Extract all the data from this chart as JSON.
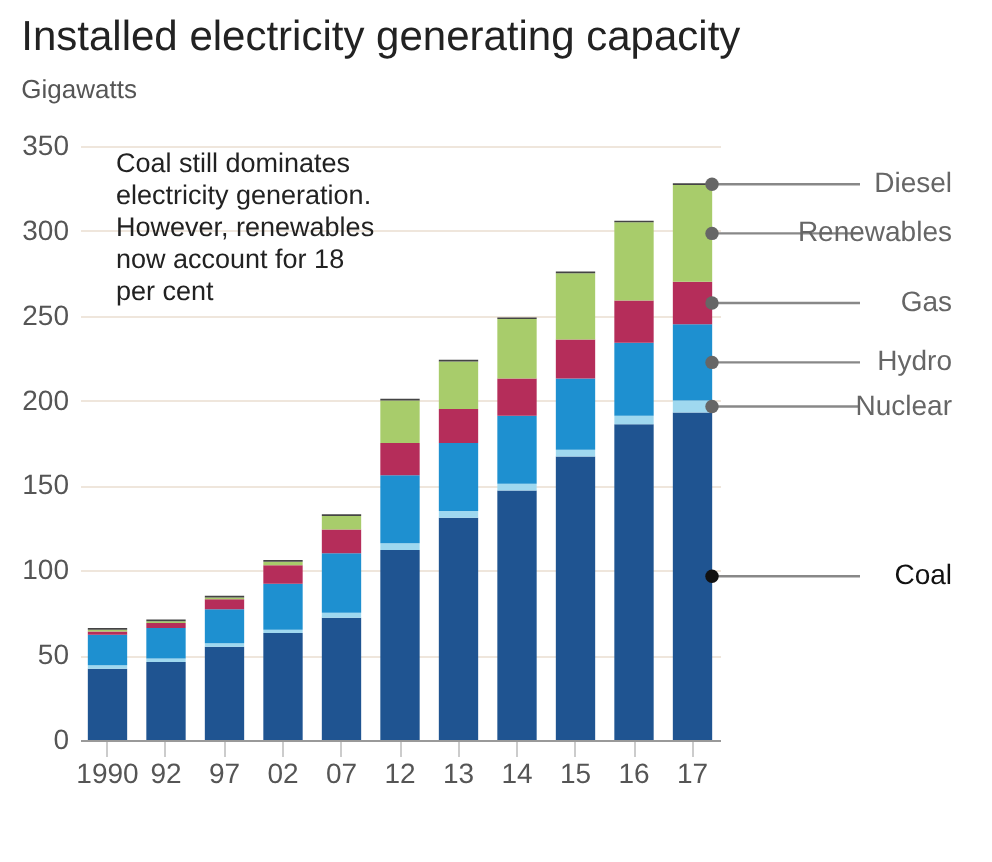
{
  "chart_data": {
    "type": "bar",
    "title": "Installed electricity generating capacity",
    "subtitle": "Gigawatts",
    "stacked": true,
    "categories": [
      "1990",
      "92",
      "97",
      "02",
      "07",
      "12",
      "13",
      "14",
      "15",
      "16",
      "17"
    ],
    "series": [
      {
        "name": "Coal",
        "color": "#1f5491",
        "values": [
          42,
          46,
          55,
          63,
          72,
          112,
          131,
          147,
          167,
          186,
          193
        ]
      },
      {
        "name": "Nuclear",
        "color": "#9fd8ef",
        "values": [
          2,
          2,
          2,
          2,
          3,
          4,
          4,
          4,
          4,
          5,
          7
        ]
      },
      {
        "name": "Hydro",
        "color": "#1e90d0",
        "values": [
          18,
          18,
          20,
          27,
          35,
          40,
          40,
          40,
          42,
          43,
          45
        ]
      },
      {
        "name": "Gas",
        "color": "#b52d5a",
        "values": [
          2,
          3,
          6,
          11,
          14,
          19,
          20,
          22,
          23,
          25,
          25
        ]
      },
      {
        "name": "Renewables",
        "color": "#a8cc6b",
        "values": [
          1,
          1,
          1,
          2,
          8,
          25,
          28,
          35,
          39,
          46,
          57
        ]
      },
      {
        "name": "Diesel",
        "color": "#444444",
        "values": [
          1,
          1,
          1,
          1,
          1,
          1,
          1,
          1,
          1,
          1,
          1
        ]
      }
    ],
    "ylim": [
      0,
      350
    ],
    "yticks": [
      0,
      50,
      100,
      150,
      200,
      250,
      300,
      350
    ],
    "grid": "y",
    "legend": "right",
    "annotations": [
      "Coal still dominates\nelectricity generation.\nHowever, renewables\nnow account for 18\nper cent"
    ]
  }
}
